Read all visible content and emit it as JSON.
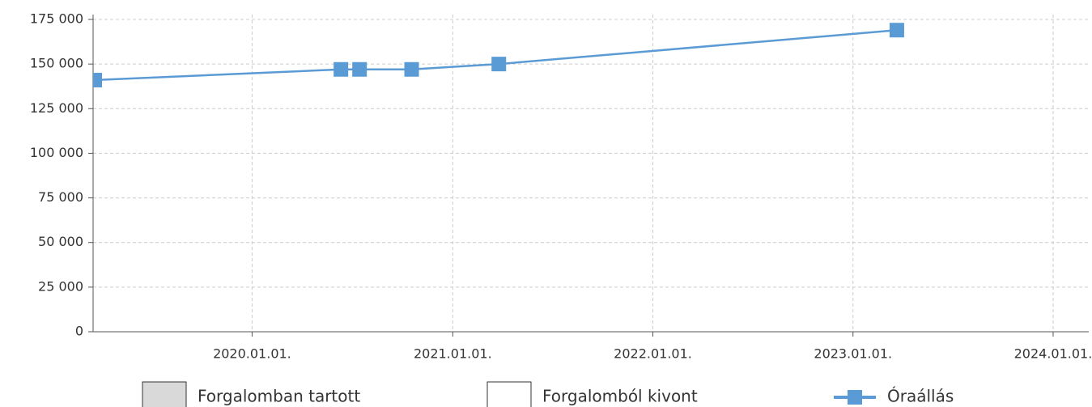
{
  "chart_data": {
    "type": "line",
    "x": [
      "2019.03.20.",
      "2020.06.11.",
      "2020.07.15.",
      "2020.10.18.",
      "2021.03.26.",
      "2023.03.22."
    ],
    "series": [
      {
        "name": "Óraállás",
        "color": "#5b9bd5",
        "values": [
          141000,
          147000,
          147000,
          147000,
          150000,
          169000
        ]
      }
    ],
    "legend_boxes": [
      {
        "name": "Forgalomban tartott",
        "color": "#d9d9d9"
      },
      {
        "name": "Forgalomból kivont",
        "color": "#ffffff"
      }
    ],
    "xlim": [
      "2019.03.17.",
      "2024.03.06."
    ],
    "xticks": [
      "2020.01.01.",
      "2021.01.01.",
      "2022.01.01.",
      "2023.01.01.",
      "2024.01.01."
    ],
    "ylim": [
      0,
      175000
    ],
    "yticks": [
      {
        "value": 0,
        "label": "0"
      },
      {
        "value": 25000,
        "label": "25 000"
      },
      {
        "value": 50000,
        "label": "50 000"
      },
      {
        "value": 75000,
        "label": "75 000"
      },
      {
        "value": 100000,
        "label": "100 000"
      },
      {
        "value": 125000,
        "label": "125 000"
      },
      {
        "value": 150000,
        "label": "150 000"
      },
      {
        "value": 175000,
        "label": "175 000"
      }
    ],
    "grid": true
  }
}
